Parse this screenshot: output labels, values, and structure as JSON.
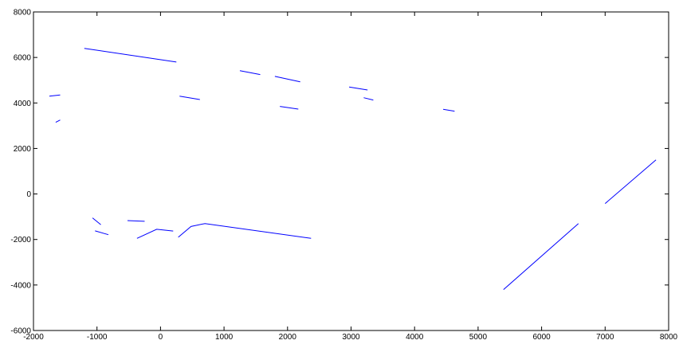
{
  "chart_data": {
    "type": "line",
    "title": "",
    "xlabel": "",
    "ylabel": "",
    "xlim": [
      -2000,
      8000
    ],
    "ylim": [
      -6000,
      8000
    ],
    "xticks": [
      -2000,
      -1000,
      0,
      1000,
      2000,
      3000,
      4000,
      5000,
      6000,
      7000,
      8000
    ],
    "yticks": [
      -6000,
      -4000,
      -2000,
      0,
      2000,
      4000,
      6000,
      8000
    ],
    "xtick_labels": [
      "-2000",
      "-1000",
      "0",
      "1000",
      "2000",
      "3000",
      "4000",
      "5000",
      "6000",
      "7000",
      "8000"
    ],
    "ytick_labels": [
      "-6000",
      "-4000",
      "-2000",
      "0",
      "2000",
      "4000",
      "6000",
      "8000"
    ],
    "grid": false,
    "line_color": "#0000ff",
    "series": [
      {
        "points": [
          [
            -1200,
            6400
          ],
          [
            250,
            5800
          ]
        ]
      },
      {
        "points": [
          [
            -1750,
            4300
          ],
          [
            -1580,
            4350
          ]
        ]
      },
      {
        "points": [
          [
            -1650,
            3150
          ],
          [
            -1580,
            3250
          ]
        ]
      },
      {
        "points": [
          [
            300,
            4300
          ],
          [
            620,
            4150
          ]
        ]
      },
      {
        "points": [
          [
            1250,
            5420
          ],
          [
            1570,
            5250
          ]
        ]
      },
      {
        "points": [
          [
            1800,
            5170
          ],
          [
            2200,
            4930
          ]
        ]
      },
      {
        "points": [
          [
            1880,
            3850
          ],
          [
            2170,
            3730
          ]
        ]
      },
      {
        "points": [
          [
            2970,
            4700
          ],
          [
            3260,
            4570
          ]
        ]
      },
      {
        "points": [
          [
            3200,
            4230
          ],
          [
            3350,
            4130
          ]
        ]
      },
      {
        "points": [
          [
            4450,
            3720
          ],
          [
            4630,
            3640
          ]
        ]
      },
      {
        "points": [
          [
            -1070,
            -1050
          ],
          [
            -940,
            -1350
          ]
        ]
      },
      {
        "points": [
          [
            -1030,
            -1620
          ],
          [
            -820,
            -1790
          ]
        ]
      },
      {
        "points": [
          [
            -520,
            -1170
          ],
          [
            -250,
            -1200
          ]
        ]
      },
      {
        "points": [
          [
            -370,
            -1950
          ],
          [
            -60,
            -1550
          ],
          [
            200,
            -1630
          ]
        ]
      },
      {
        "points": [
          [
            280,
            -1900
          ],
          [
            480,
            -1430
          ],
          [
            700,
            -1300
          ],
          [
            2370,
            -1950
          ]
        ]
      },
      {
        "points": [
          [
            5400,
            -4200
          ],
          [
            6580,
            -1300
          ]
        ]
      },
      {
        "points": [
          [
            7000,
            -420
          ],
          [
            7800,
            1500
          ]
        ]
      }
    ]
  }
}
